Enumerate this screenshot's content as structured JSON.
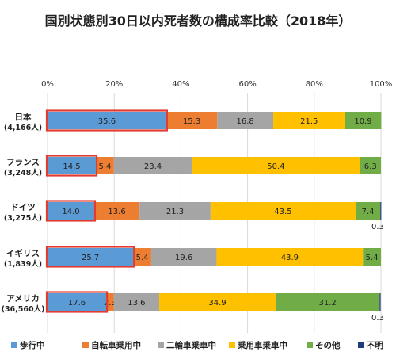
{
  "chart_data": {
    "type": "bar",
    "orientation": "horizontal",
    "stacked": true,
    "title": "国別状態別30日以内死者数の構成率比較（2018年）",
    "x_ticks": [
      "0%",
      "20%",
      "40%",
      "60%",
      "80%",
      "100%"
    ],
    "xlim": [
      0,
      100
    ],
    "categories": [
      {
        "name": "日本",
        "count": "(4,166人)"
      },
      {
        "name": "フランス",
        "count": "(3,248人)"
      },
      {
        "name": "ドイツ",
        "count": "(3,275人)"
      },
      {
        "name": "イギリス",
        "count": "(1,839人)"
      },
      {
        "name": "アメリカ",
        "count": "(36,560人)"
      }
    ],
    "series": [
      {
        "name": "歩行中",
        "color": "#5b9bd5",
        "values": [
          35.6,
          14.5,
          14.0,
          25.7,
          17.6
        ],
        "labels": [
          "35.6",
          "14.5",
          "14.0",
          "25.7",
          "17.6"
        ]
      },
      {
        "name": "自転車乗用中",
        "color": "#ed7d31",
        "values": [
          15.3,
          5.4,
          13.6,
          5.4,
          2.3
        ],
        "labels": [
          "15.3",
          "5.4",
          "13.6",
          "5.4",
          "2.3"
        ]
      },
      {
        "name": "二輪車乗車中",
        "color": "#a5a5a5",
        "values": [
          16.8,
          23.4,
          21.3,
          19.6,
          13.6
        ],
        "labels": [
          "16.8",
          "23.4",
          "21.3",
          "19.6",
          "13.6"
        ]
      },
      {
        "name": "乗用車乗車中",
        "color": "#ffc000",
        "values": [
          21.5,
          50.4,
          43.5,
          43.9,
          34.9
        ],
        "labels": [
          "21.5",
          "50.4",
          "43.5",
          "43.9",
          "34.9"
        ]
      },
      {
        "name": "その他",
        "color": "#70ad47",
        "values": [
          10.9,
          6.3,
          7.4,
          5.4,
          31.2
        ],
        "labels": [
          "10.9",
          "6.3",
          "7.4",
          "5.4",
          "31.2"
        ]
      },
      {
        "name": "不明",
        "color": "#1f3d7a",
        "values": [
          0,
          0,
          0.3,
          0,
          0.3
        ],
        "labels": [
          "",
          "",
          "0.3",
          "",
          "0.3"
        ]
      }
    ],
    "highlight_series": "歩行中",
    "highlight_color": "#e03c31",
    "grid": true,
    "legend_position": "bottom"
  }
}
